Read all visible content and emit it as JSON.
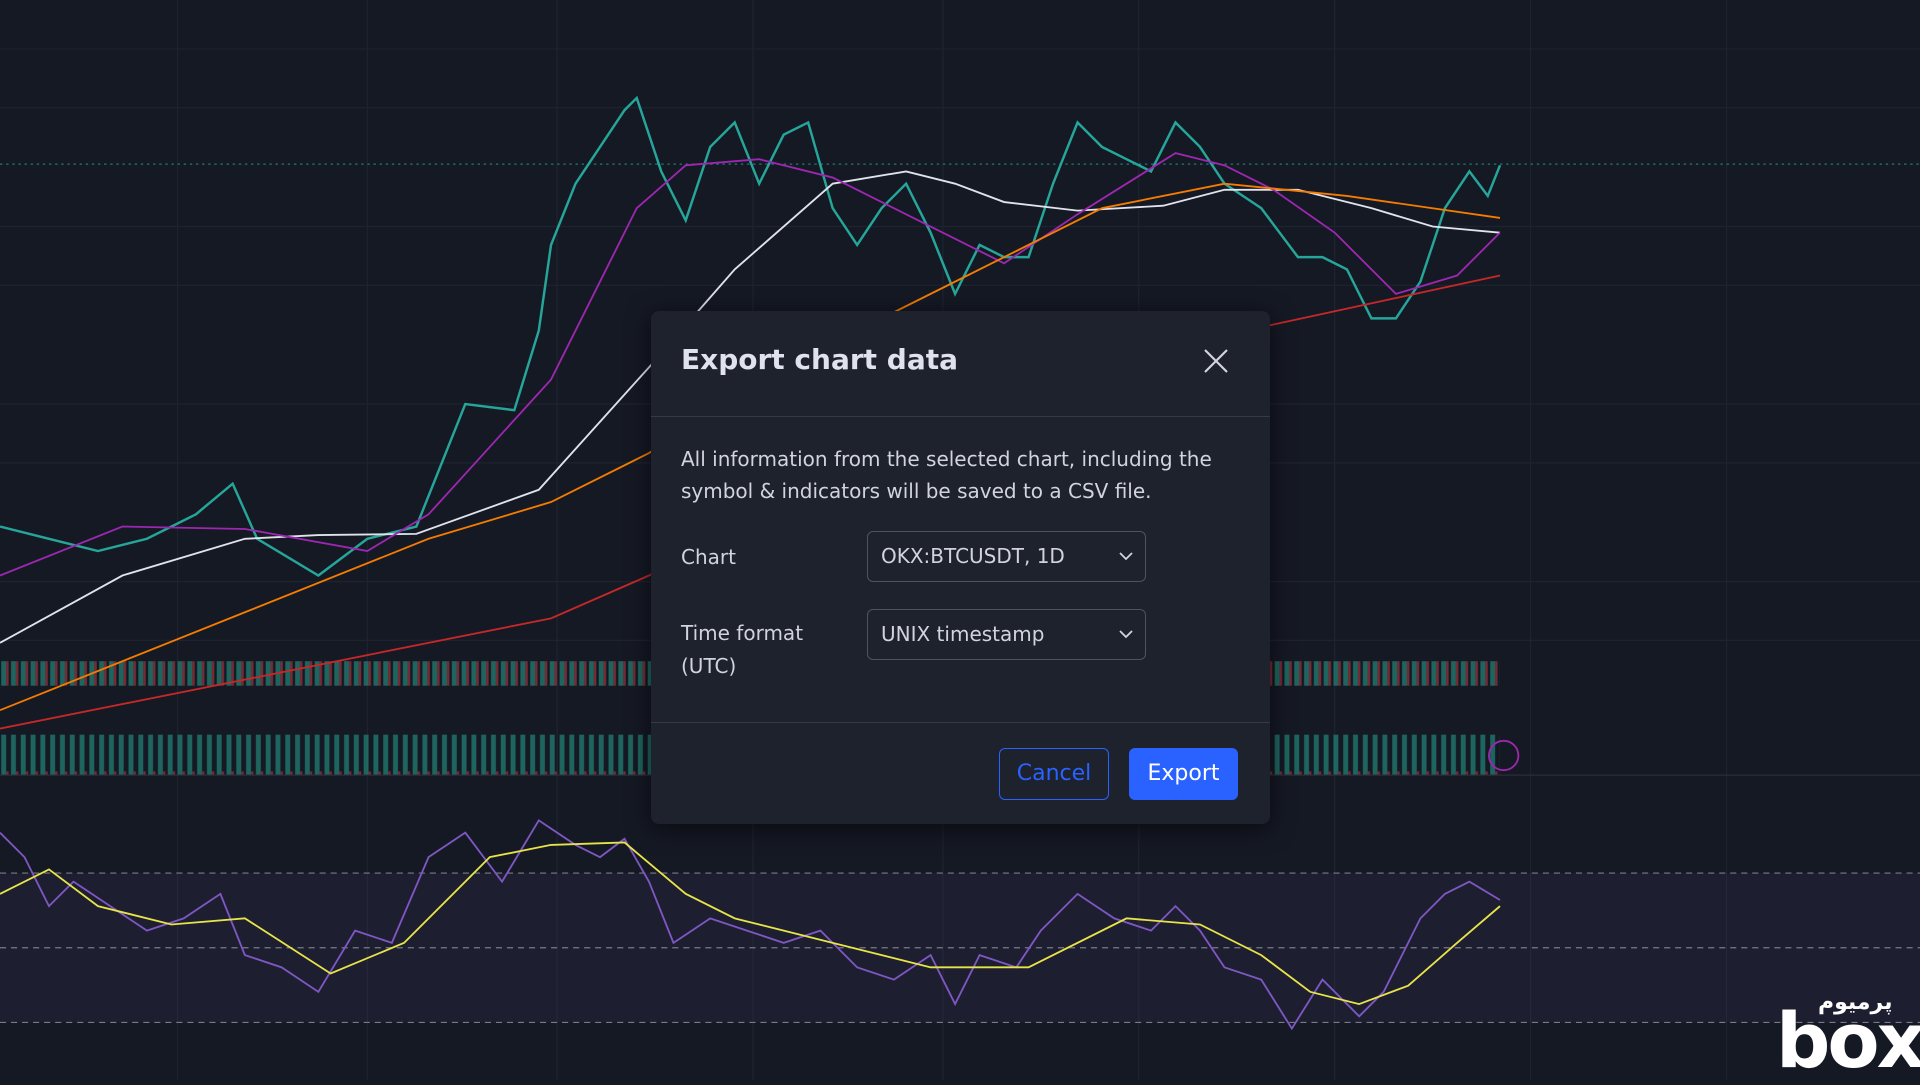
{
  "dialog": {
    "title": "Export chart data",
    "description": "All information from the selected chart, including the symbol & indicators will be saved to a CSV file.",
    "fields": [
      {
        "label": "Chart",
        "value": "OKX:BTCUSDT, 1D"
      },
      {
        "label": "Time format (UTC)",
        "value": "UNIX timestamp"
      }
    ],
    "buttons": {
      "cancel": "Cancel",
      "export": "Export"
    }
  },
  "watermark": {
    "brand": "box",
    "tagline": "پرمیوم"
  }
}
